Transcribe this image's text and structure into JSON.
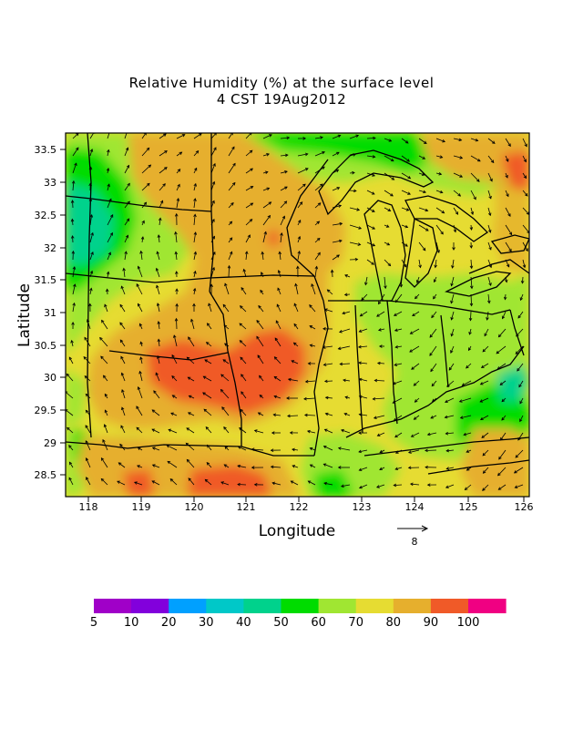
{
  "title_line1": "Relative Humidity (%) at the surface level",
  "title_line2": "4 CST 19Aug2012",
  "x_axis_label": "Longitude",
  "y_axis_label": "Latitude",
  "x_ticks": [
    "118",
    "119",
    "120",
    "121",
    "122",
    "123",
    "124",
    "125",
    "126"
  ],
  "y_ticks": [
    "33.5",
    "33",
    "32.5",
    "32",
    "31.5",
    "31",
    "30.5",
    "30",
    "29.5",
    "29",
    "28.5"
  ],
  "vector_reference_label": "8",
  "colorbar": {
    "colors": [
      "#a000c8",
      "#8200dc",
      "#00a0ff",
      "#00c8c8",
      "#00d28c",
      "#00dc00",
      "#a0e632",
      "#e6dc32",
      "#e6af2d",
      "#f05a28",
      "#f00082"
    ],
    "labels": [
      "5",
      "10",
      "20",
      "30",
      "40",
      "50",
      "60",
      "70",
      "80",
      "90",
      "100"
    ]
  }
}
